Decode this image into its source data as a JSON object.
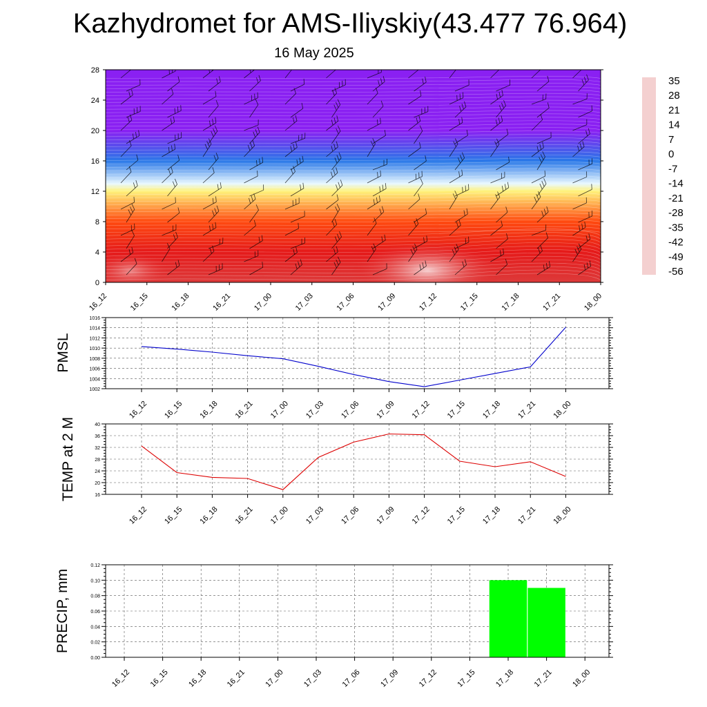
{
  "page": {
    "title": "Kazhydromet for AMS-Iliyskiy(43.477 76.964)",
    "subtitle": "16 May 2025"
  },
  "chart_data": [
    {
      "type": "heatmap",
      "name": "vertical-profile",
      "title": "",
      "x_categories": [
        "16_12",
        "16_15",
        "16_18",
        "16_21",
        "17_00",
        "17_03",
        "17_06",
        "17_09",
        "17_12",
        "17_15",
        "17_18",
        "17_21",
        "18_00"
      ],
      "y_ticks": [
        "0",
        "4",
        "8",
        "12",
        "16",
        "20",
        "24",
        "28"
      ],
      "ylim": [
        0,
        28
      ],
      "temperature_profile_by_level": [
        {
          "level": 0,
          "value": 28
        },
        {
          "level": 4,
          "value": 24
        },
        {
          "level": 8,
          "value": 14
        },
        {
          "level": 12,
          "value": -7
        },
        {
          "level": 13,
          "value": -14
        },
        {
          "level": 16,
          "value": -35
        },
        {
          "level": 20,
          "value": -56
        },
        {
          "level": 28,
          "value": -60
        }
      ],
      "colorbar": {
        "labels": [
          "35",
          "28",
          "21",
          "14",
          "7",
          "0",
          "-7",
          "-14",
          "-21",
          "-28",
          "-35",
          "-42",
          "-49",
          "-56"
        ],
        "colors": [
          "#f4d0d0",
          "#dd3a3a",
          "#e51a1a",
          "#ff4a10",
          "#ff7a00",
          "#ffb000",
          "#fff27a",
          "#e8f8ff",
          "#5cc6f4",
          "#20a0e8",
          "#2a78e8",
          "#3f48e8",
          "#5a2ae8",
          "#8a20f2"
        ]
      },
      "wind_barbs": true
    },
    {
      "type": "line",
      "name": "pmsl",
      "ylabel": "PMSL",
      "categories": [
        "16_12",
        "16_15",
        "16_18",
        "16_21",
        "17_00",
        "17_03",
        "17_06",
        "17_09",
        "17_12",
        "17_15",
        "17_18",
        "17_21",
        "18_00"
      ],
      "values": [
        1010.3,
        1009.8,
        1009.2,
        1008.5,
        1007.9,
        1006.4,
        1004.8,
        1003.4,
        1002.4,
        1003.7,
        1005.0,
        1006.3,
        1014.1
      ],
      "ylim": [
        1002,
        1016
      ],
      "yticks": [
        "1002",
        "1004",
        "1006",
        "1008",
        "1010",
        "1012",
        "1014",
        "1016"
      ],
      "color": "#0000cc",
      "grid": true
    },
    {
      "type": "line",
      "name": "temp2m",
      "ylabel": "TEMP at 2 M",
      "categories": [
        "16_12",
        "16_15",
        "16_18",
        "16_21",
        "17_00",
        "17_03",
        "17_06",
        "17_09",
        "17_12",
        "17_15",
        "17_18",
        "17_21",
        "18_00"
      ],
      "values": [
        32.5,
        23.4,
        21.8,
        21.4,
        17.6,
        28.6,
        33.8,
        36.6,
        36.3,
        27.3,
        25.4,
        27.1,
        22.1
      ],
      "ylim": [
        16,
        40
      ],
      "yticks": [
        "16",
        "20",
        "24",
        "28",
        "32",
        "36",
        "40"
      ],
      "color": "#dd0000",
      "grid": true
    },
    {
      "type": "bar",
      "name": "precip",
      "ylabel": "PRECIP, mm",
      "categories": [
        "16_12",
        "16_15",
        "16_18",
        "16_21",
        "17_00",
        "17_03",
        "17_06",
        "17_09",
        "17_12",
        "17_15",
        "17_18",
        "17_21",
        "18_00"
      ],
      "values": [
        0,
        0,
        0,
        0,
        0,
        0,
        0,
        0,
        0,
        0,
        0.1,
        0.09,
        0
      ],
      "ylim": [
        0,
        0.12
      ],
      "yticks": [
        "0.00",
        "0.02",
        "0.04",
        "0.06",
        "0.08",
        "0.10",
        "0.12"
      ],
      "color": "#00ff00",
      "grid": true
    }
  ]
}
